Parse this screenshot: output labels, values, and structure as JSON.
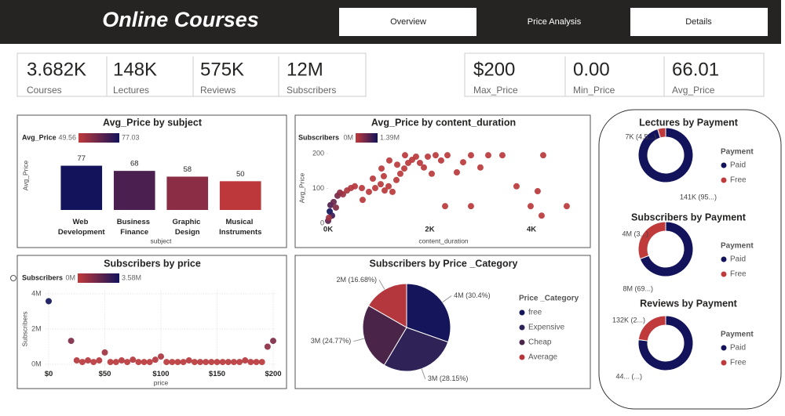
{
  "header": {
    "title": "Online Courses",
    "nav": [
      "Overview",
      "Price Analysis",
      "Details"
    ]
  },
  "cards": [
    [
      {
        "value": "3.682K",
        "label": "Courses"
      },
      {
        "value": "148K",
        "label": "Lectures"
      },
      {
        "value": "575K",
        "label": "Reviews"
      },
      {
        "value": "12M",
        "label": "Subscribers"
      }
    ],
    [
      {
        "value": "$200",
        "label": "Max_Price"
      },
      {
        "value": "0.00",
        "label": "Min_Price"
      },
      {
        "value": "66.01",
        "label": "Avg_Price"
      }
    ]
  ],
  "chart_data": [
    {
      "type": "bar",
      "title": "Avg_Price by subject",
      "xlabel": "subject",
      "ylabel": "Avg_Price",
      "categories": [
        "Web Development",
        "Business Finance",
        "Graphic Design",
        "Musical Instruments"
      ],
      "values": [
        77,
        68,
        58,
        50
      ],
      "ylim": [
        0,
        120
      ],
      "color_scale": {
        "title": "Avg_Price",
        "range": [
          49.56,
          77.03
        ],
        "colors": [
          "#c0393b",
          "#12135a"
        ]
      }
    },
    {
      "type": "scatter",
      "title": "Avg_Price by content_duration",
      "xlabel": "content_duration",
      "ylabel": "Avg_Price",
      "x": [
        31,
        46,
        77,
        108,
        154,
        185,
        232,
        293,
        371,
        448,
        525,
        679,
        803,
        926,
        1034,
        1112,
        1189,
        1266,
        1343,
        1420,
        1498,
        1575,
        1652,
        1729,
        1806,
        1884,
        1961,
        2038,
        2115,
        2223,
        2347,
        2532,
        2656,
        2810,
        2995,
        3150,
        3428,
        3706,
        4122,
        4231,
        2301,
        2810,
        3984,
        4200,
        4694,
        1050,
        1204,
        1359,
        1513,
        664,
        880,
        1096,
        0,
        15
      ],
      "values": [
        34,
        52,
        22,
        61,
        45,
        79,
        88,
        83,
        94,
        101,
        106,
        67,
        90,
        101,
        112,
        94,
        106,
        90,
        124,
        142,
        157,
        173,
        182,
        191,
        173,
        160,
        191,
        142,
        195,
        180,
        195,
        146,
        175,
        195,
        160,
        195,
        195,
        106,
        92,
        195,
        49,
        49,
        49,
        22,
        49,
        157,
        180,
        168,
        195,
        101,
        128,
        135,
        7,
        16
      ],
      "color_values": [
        1390000,
        900000,
        1100000,
        700000,
        500000,
        600000,
        400000,
        300000,
        150000,
        120000,
        80000,
        60000,
        50000,
        50000,
        50000,
        50000,
        50000,
        50000,
        50000,
        50000,
        50000,
        50000,
        50000,
        50000,
        50000,
        50000,
        50000,
        50000,
        50000,
        50000,
        50000,
        50000,
        50000,
        50000,
        50000,
        50000,
        50000,
        50000,
        50000,
        50000,
        50000,
        50000,
        50000,
        50000,
        50000,
        50000,
        50000,
        50000,
        50000,
        50000,
        50000,
        50000,
        800000,
        250000
      ],
      "xlim": [
        0,
        4900
      ],
      "ylim": [
        0,
        210
      ],
      "xticks": [
        {
          "value": 0,
          "label": "0K"
        },
        {
          "value": 2000,
          "label": "2K"
        },
        {
          "value": 4000,
          "label": "4K"
        }
      ],
      "yticks": [
        0,
        100,
        200
      ],
      "color_scale": {
        "title": "Subscribers",
        "range": [
          {
            "value": 0,
            "label": "0M"
          },
          {
            "value": 1390000,
            "label": "1.39M"
          }
        ],
        "colors": [
          "#c0393b",
          "#12135a"
        ]
      }
    },
    {
      "type": "scatter",
      "title": "Subscribers by price",
      "xlabel": "price",
      "ylabel": "Subscribers",
      "x": [
        0,
        20,
        25,
        30,
        35,
        40,
        45,
        50,
        55,
        60,
        65,
        70,
        75,
        80,
        85,
        90,
        95,
        100,
        105,
        110,
        115,
        120,
        125,
        130,
        135,
        140,
        145,
        150,
        155,
        160,
        165,
        170,
        175,
        180,
        185,
        190,
        195,
        200
      ],
      "values": [
        3580000,
        1330000,
        220000,
        130000,
        220000,
        130000,
        220000,
        670000,
        130000,
        130000,
        220000,
        130000,
        260000,
        130000,
        130000,
        130000,
        260000,
        440000,
        130000,
        130000,
        130000,
        130000,
        220000,
        130000,
        130000,
        130000,
        130000,
        130000,
        130000,
        130000,
        130000,
        130000,
        220000,
        130000,
        130000,
        130000,
        1000000,
        1330000
      ],
      "xlim": [
        -3,
        203
      ],
      "ylim": [
        -200000,
        4200000
      ],
      "grid": true,
      "xticks": [
        {
          "value": 0,
          "label": "$0"
        },
        {
          "value": 50,
          "label": "$50"
        },
        {
          "value": 100,
          "label": "$100"
        },
        {
          "value": 150,
          "label": "$150"
        },
        {
          "value": 200,
          "label": "$200"
        }
      ],
      "yticks": [
        {
          "value": 0,
          "label": "0M"
        },
        {
          "value": 2000000,
          "label": "2M"
        },
        {
          "value": 4000000,
          "label": "4M"
        }
      ],
      "color_scale": {
        "title": "Subscribers",
        "range": [
          {
            "value": 0,
            "label": "0M"
          },
          {
            "value": 3580000,
            "label": "3.58M"
          }
        ],
        "colors": [
          "#c0393b",
          "#12135a"
        ]
      }
    },
    {
      "type": "pie",
      "title": "Subscribers by Price _Category",
      "legend_title": "Price _Category",
      "categories": [
        "free",
        "Expensive",
        "Cheap",
        "Average"
      ],
      "values": [
        30.4,
        28.15,
        24.77,
        16.68
      ],
      "value_labels": [
        "4M (30.4%)",
        "3M (28.15%)",
        "3M (24.77%)",
        "2M (16.68%)"
      ],
      "colors": [
        "#15155c",
        "#2e2257",
        "#4a2549",
        "#b5373e"
      ]
    },
    {
      "type": "donut",
      "title": "Lectures by Payment",
      "legend_title": "Payment",
      "categories": [
        "Paid",
        "Free"
      ],
      "values": [
        141000,
        7000
      ],
      "value_labels": [
        "141K (95...)",
        "7K (4.5...)"
      ],
      "colors": [
        "#12135a",
        "#c0393b"
      ]
    },
    {
      "type": "donut",
      "title": "Subscribers by Payment",
      "legend_title": "Payment",
      "categories": [
        "Paid",
        "Free"
      ],
      "values": [
        8300000,
        3700000
      ],
      "value_labels": [
        "8M (69...)",
        "4M (3...)"
      ],
      "colors": [
        "#12135a",
        "#c0393b"
      ]
    },
    {
      "type": "donut",
      "title": "Reviews by Payment",
      "legend_title": "Payment",
      "categories": [
        "Paid",
        "Free"
      ],
      "values": [
        443000,
        132000
      ],
      "value_labels": [
        "44... (...)",
        "132K (2...)"
      ],
      "colors": [
        "#12135a",
        "#c0393b"
      ]
    }
  ]
}
